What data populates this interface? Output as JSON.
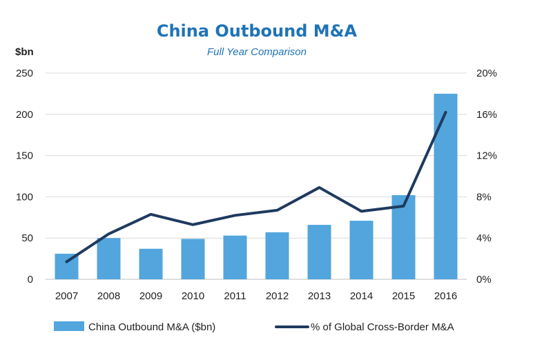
{
  "colors": {
    "title": "#1f73b7",
    "bar": "#52a5dd",
    "line": "#1f3a5f",
    "grid": "#d9d9d9",
    "axis": "#bfbfbf"
  },
  "chart_data": {
    "type": "bar",
    "title": "China Outbound M&A",
    "subtitle": "Full Year Comparison",
    "ylabel": "$bn",
    "categories": [
      "2007",
      "2008",
      "2009",
      "2010",
      "2011",
      "2012",
      "2013",
      "2014",
      "2015",
      "2016"
    ],
    "ylim": [
      0,
      250
    ],
    "y_ticks": [
      0,
      50,
      100,
      150,
      200,
      250
    ],
    "y2lim": [
      0,
      20
    ],
    "y2_ticks": [
      0,
      4,
      8,
      12,
      16,
      20
    ],
    "y2_tick_labels": [
      "0%",
      "4%",
      "8%",
      "12%",
      "16%",
      "20%"
    ],
    "series": [
      {
        "name": "China Outbound M&A ($bn)",
        "type": "bar",
        "axis": "left",
        "values": [
          31,
          50,
          37,
          49,
          53,
          57,
          66,
          71,
          102,
          225
        ]
      },
      {
        "name": "% of Global Cross-Border M&A",
        "type": "line",
        "axis": "right",
        "values": [
          1.7,
          4.4,
          6.3,
          5.3,
          6.2,
          6.7,
          8.9,
          6.6,
          7.1,
          16.2
        ]
      }
    ],
    "legend": "bottom"
  }
}
